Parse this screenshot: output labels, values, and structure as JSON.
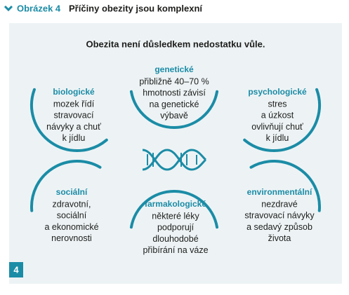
{
  "header": {
    "label": "Obrázek 4",
    "title": "Příčiny obezity jsou komplexní"
  },
  "subtitle": "Obezita není důsledkem nedostatku vůle.",
  "factors": [
    {
      "label": "biologické",
      "lines": [
        "mozek řídí",
        "stravovací",
        "návyky a chuť",
        "k jídlu"
      ]
    },
    {
      "label": "genetické",
      "lines": [
        "přibližně 40–70 %",
        "hmotnosti závisí",
        "na genetické",
        "výbavě"
      ]
    },
    {
      "label": "psychologické",
      "lines": [
        "stres",
        "a úzkost",
        "ovlivňují chuť",
        "k jídlu"
      ]
    },
    {
      "label": "sociální",
      "lines": [
        "zdravotní,",
        "sociální",
        "a ekonomické",
        "nerovnosti"
      ]
    },
    {
      "label": "farmakologické",
      "lines": [
        "některé léky",
        "podporují",
        "dlouhodobé",
        "přibírání na váze"
      ]
    },
    {
      "label": "environmentální",
      "lines": [
        "nezdravé",
        "stravovací návyky",
        "a sedavý způsob",
        "života"
      ]
    }
  ],
  "page_number": "4"
}
